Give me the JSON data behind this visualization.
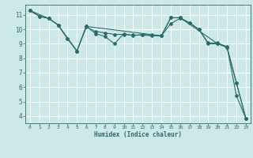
{
  "title": "",
  "xlabel": "Humidex (Indice chaleur)",
  "ylabel": "",
  "bg_color": "#cce8e8",
  "grid_color": "#ffffff",
  "line_color": "#2d6b6b",
  "xlim": [
    -0.5,
    23.5
  ],
  "ylim": [
    3.5,
    11.7
  ],
  "yticks": [
    4,
    5,
    6,
    7,
    8,
    9,
    10,
    11
  ],
  "xticks": [
    0,
    1,
    2,
    3,
    4,
    5,
    6,
    7,
    8,
    9,
    10,
    11,
    12,
    13,
    14,
    15,
    16,
    17,
    18,
    19,
    20,
    21,
    22,
    23
  ],
  "series": [
    {
      "x": [
        0,
        1,
        2,
        3,
        4,
        5,
        6,
        7,
        8,
        9,
        10,
        11,
        12,
        13,
        14,
        15,
        16,
        17,
        18,
        19,
        20,
        21,
        22,
        23
      ],
      "y": [
        11.3,
        10.9,
        10.75,
        10.3,
        9.35,
        8.5,
        10.2,
        9.7,
        9.5,
        9.0,
        9.7,
        9.55,
        9.65,
        9.6,
        9.55,
        10.8,
        10.8,
        10.45,
        10.0,
        9.0,
        9.0,
        8.75,
        6.3,
        3.85
      ]
    },
    {
      "x": [
        0,
        1,
        2,
        3,
        4,
        5,
        6,
        7,
        8,
        9,
        10,
        11,
        12,
        13,
        14,
        15,
        16,
        17,
        18,
        19,
        20,
        21,
        22,
        23
      ],
      "y": [
        11.3,
        10.9,
        10.75,
        10.3,
        9.35,
        8.5,
        10.15,
        9.85,
        9.75,
        9.65,
        9.65,
        9.6,
        9.6,
        9.55,
        9.55,
        10.4,
        10.75,
        10.45,
        10.0,
        9.05,
        9.05,
        8.8,
        5.4,
        3.85
      ]
    },
    {
      "x": [
        0,
        2,
        3,
        5,
        6,
        14,
        15,
        16,
        20,
        21,
        22,
        23
      ],
      "y": [
        11.3,
        10.75,
        10.3,
        8.5,
        10.2,
        9.55,
        10.8,
        10.8,
        9.0,
        8.75,
        6.3,
        3.85
      ]
    }
  ]
}
